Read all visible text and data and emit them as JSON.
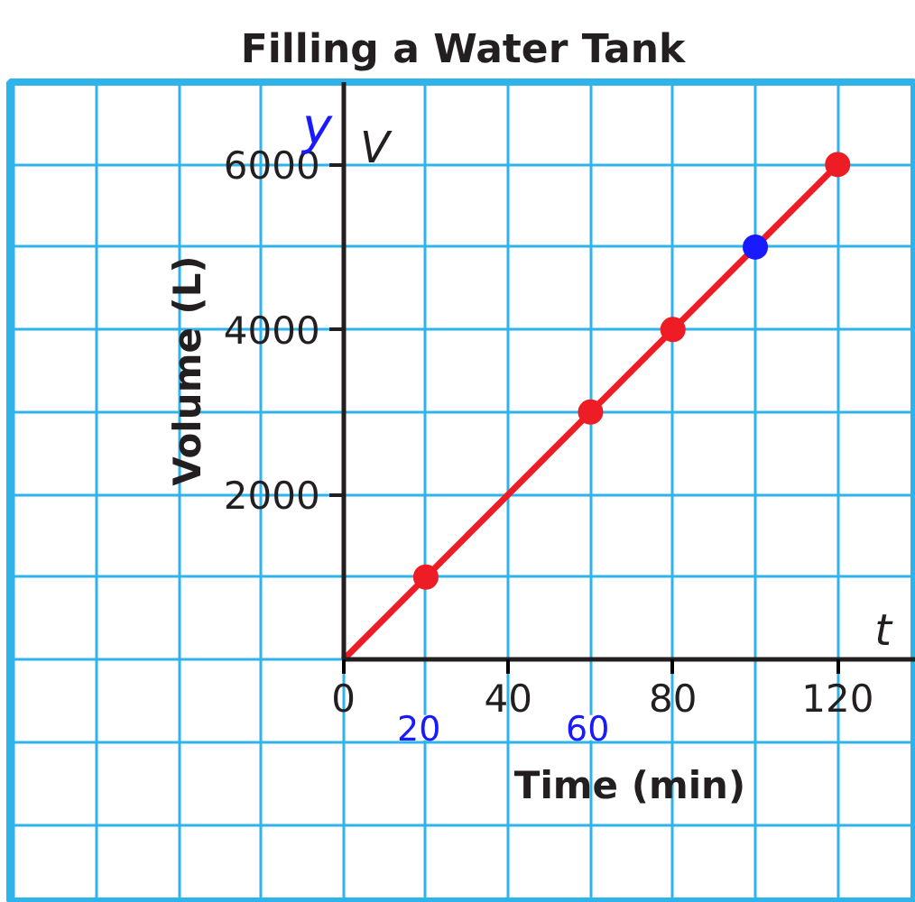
{
  "chart_data": {
    "type": "line",
    "title": "Filling a Water Tank",
    "xlabel": "Time (min)",
    "ylabel": "Volume (L)",
    "annotations": [
      "V",
      "t",
      "y",
      "20",
      "60"
    ],
    "xlim": [
      -81,
      139
    ],
    "ylim": [
      -2950,
      7000
    ],
    "xticks": [
      {
        "value": -80,
        "label": null
      },
      {
        "value": -60,
        "label": null
      },
      {
        "value": -40,
        "label": null
      },
      {
        "value": -20,
        "label": null
      },
      0,
      {
        "value": 20,
        "label": null
      },
      40,
      {
        "value": 60,
        "label": null
      },
      80,
      {
        "value": 100,
        "label": null
      },
      120
    ],
    "yticks": [
      {
        "value": -2000,
        "label": null
      },
      {
        "value": -1000,
        "label": null
      },
      {
        "value": 0,
        "label": null
      },
      {
        "value": 1000,
        "label": null
      },
      2000,
      {
        "value": 3000,
        "label": null
      },
      4000,
      {
        "value": 5000,
        "label": null
      },
      6000
    ],
    "grid": true,
    "series": [
      {
        "type": "line",
        "color": "#ee1c25",
        "x": [
          0,
          120
        ],
        "values": [
          0,
          6000
        ],
        "marker": "none"
      },
      {
        "type": "scatter",
        "color": "#ee1c25",
        "x": [
          20,
          60,
          80,
          120
        ],
        "values": [
          1000,
          3000,
          4000,
          6000
        ],
        "marker": "circle"
      },
      {
        "type": "scatter",
        "color": "#1a1aff",
        "x": [
          100
        ],
        "values": [
          5000
        ],
        "marker": "circle"
      }
    ]
  }
}
